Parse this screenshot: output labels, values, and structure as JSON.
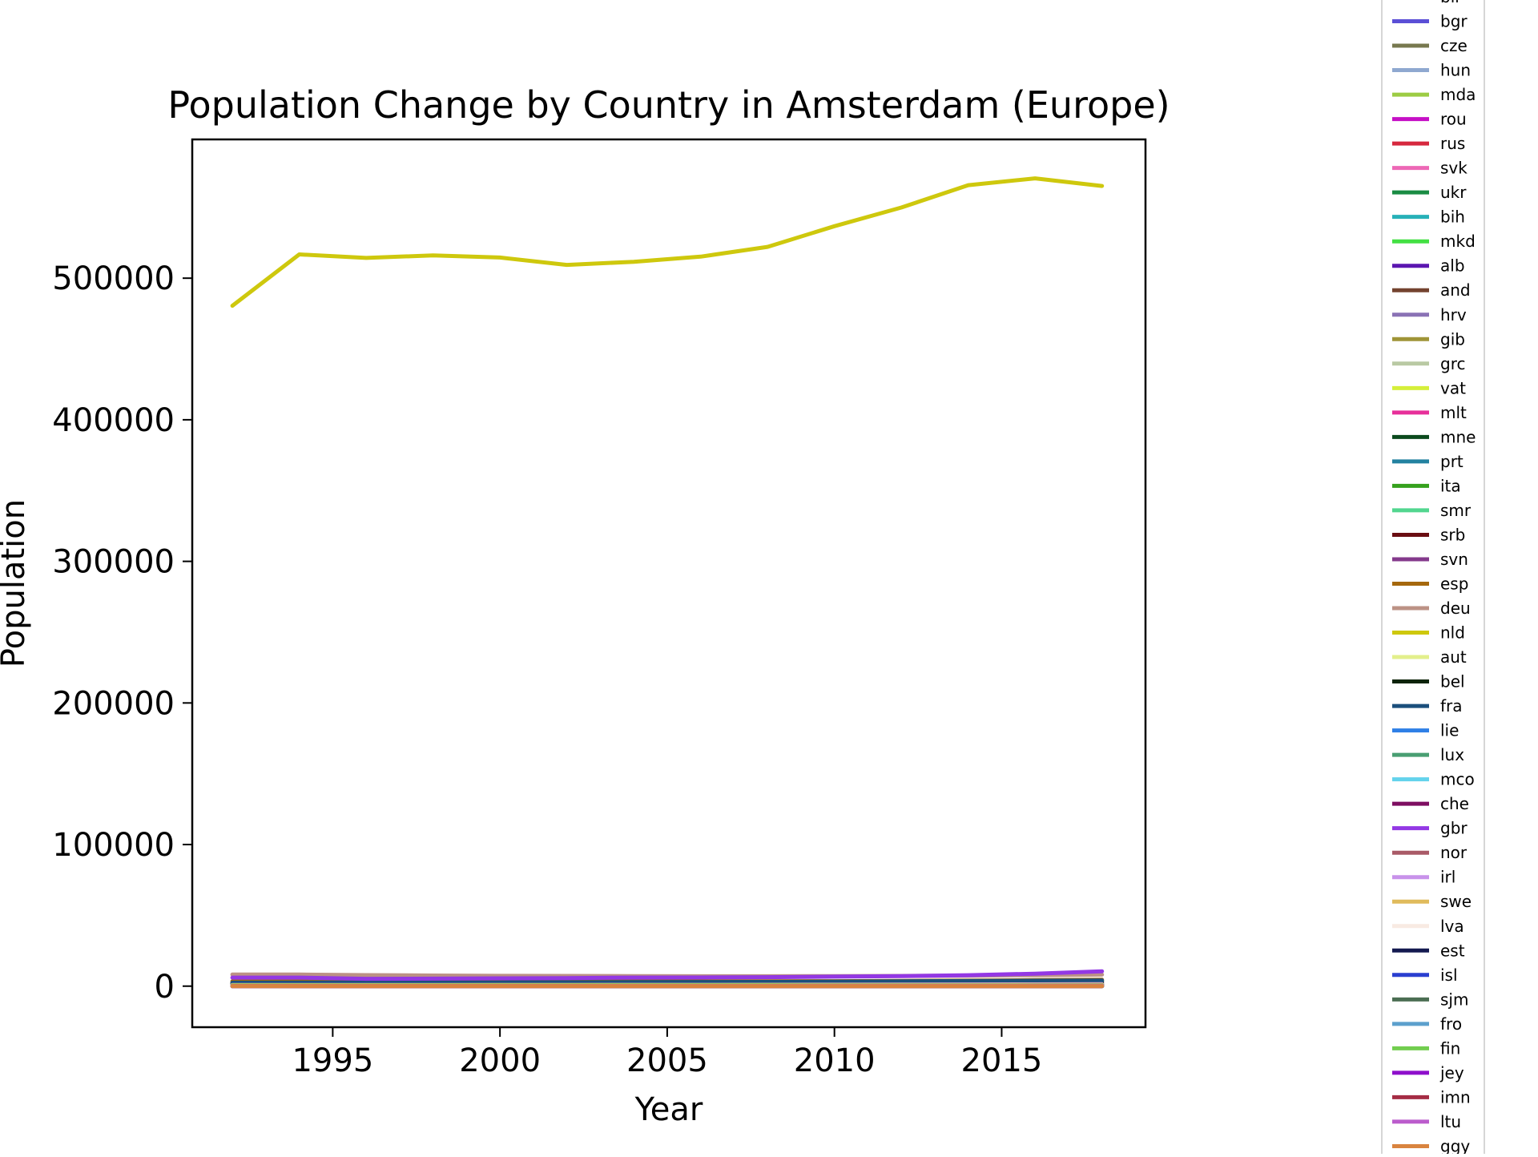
{
  "chart_data": {
    "type": "line",
    "title": "Population Change by Country in Amsterdam (Europe)",
    "xlabel": "Year",
    "ylabel": "Population",
    "xlim": [
      1990.8,
      2019.3
    ],
    "ylim": [
      -29000,
      598000
    ],
    "xticks": [
      1995,
      2000,
      2005,
      2010,
      2015
    ],
    "yticks": [
      0,
      100000,
      200000,
      300000,
      400000,
      500000
    ],
    "grid": false,
    "legend": "right",
    "x": [
      1992,
      1994,
      1996,
      1998,
      2000,
      2002,
      2004,
      2006,
      2008,
      2010,
      2012,
      2014,
      2016,
      2018
    ],
    "series": [
      {
        "name": "blr",
        "color": "#6b8e23",
        "values": [
          200,
          220,
          240,
          260,
          280,
          300,
          320,
          340,
          360,
          380,
          400,
          420,
          440,
          460
        ]
      },
      {
        "name": "bgr",
        "color": "#5b4fd6",
        "values": [
          300,
          330,
          360,
          400,
          450,
          500,
          560,
          620,
          700,
          800,
          900,
          1000,
          1100,
          1200
        ]
      },
      {
        "name": "cze",
        "color": "#77784f",
        "values": [
          500,
          520,
          540,
          560,
          580,
          600,
          620,
          640,
          660,
          680,
          700,
          720,
          740,
          760
        ]
      },
      {
        "name": "hun",
        "color": "#8fa8d0",
        "values": [
          400,
          420,
          440,
          460,
          480,
          500,
          520,
          540,
          560,
          580,
          600,
          620,
          640,
          660
        ]
      },
      {
        "name": "mda",
        "color": "#9ccc44",
        "values": [
          100,
          110,
          120,
          130,
          140,
          150,
          160,
          170,
          180,
          190,
          200,
          210,
          220,
          230
        ]
      },
      {
        "name": "rou",
        "color": "#c50fc5",
        "values": [
          600,
          630,
          660,
          700,
          740,
          780,
          820,
          860,
          900,
          950,
          1000,
          1050,
          1100,
          1150
        ]
      },
      {
        "name": "rus",
        "color": "#d6283e",
        "values": [
          1500,
          1600,
          1700,
          1800,
          1900,
          2000,
          2100,
          2200,
          2300,
          2400,
          2500,
          2600,
          2700,
          2800
        ]
      },
      {
        "name": "svk",
        "color": "#ed68b6",
        "values": [
          200,
          210,
          220,
          230,
          240,
          250,
          260,
          270,
          280,
          290,
          300,
          310,
          320,
          330
        ]
      },
      {
        "name": "ukr",
        "color": "#198c43",
        "values": [
          500,
          550,
          600,
          650,
          700,
          750,
          800,
          850,
          900,
          950,
          1000,
          1050,
          1100,
          1150
        ]
      },
      {
        "name": "bih",
        "color": "#27b1b8",
        "values": [
          1200,
          1300,
          1350,
          1400,
          1400,
          1380,
          1360,
          1340,
          1320,
          1300,
          1280,
          1260,
          1240,
          1220
        ]
      },
      {
        "name": "mkd",
        "color": "#43e043",
        "values": [
          400,
          410,
          420,
          430,
          440,
          450,
          460,
          470,
          480,
          490,
          500,
          510,
          520,
          530
        ]
      },
      {
        "name": "alb",
        "color": "#5b16b0",
        "values": [
          100,
          120,
          140,
          160,
          180,
          200,
          220,
          240,
          260,
          280,
          300,
          320,
          340,
          360
        ]
      },
      {
        "name": "and",
        "color": "#74432f",
        "values": [
          5,
          5,
          5,
          5,
          5,
          5,
          5,
          5,
          5,
          5,
          5,
          5,
          5,
          5
        ]
      },
      {
        "name": "hrv",
        "color": "#8a72b5",
        "values": [
          600,
          620,
          640,
          660,
          680,
          700,
          720,
          740,
          760,
          780,
          800,
          820,
          840,
          860
        ]
      },
      {
        "name": "gib",
        "color": "#9f9437",
        "values": [
          10,
          10,
          10,
          10,
          10,
          10,
          10,
          10,
          10,
          10,
          10,
          10,
          10,
          10
        ]
      },
      {
        "name": "grc",
        "color": "#b9c9a3",
        "values": [
          900,
          920,
          940,
          960,
          980,
          1000,
          1020,
          1040,
          1060,
          1080,
          1100,
          1200,
          1300,
          1400
        ]
      },
      {
        "name": "vat",
        "color": "#d5ef3a",
        "values": [
          2,
          2,
          2,
          2,
          2,
          2,
          2,
          2,
          2,
          2,
          2,
          2,
          2,
          2
        ]
      },
      {
        "name": "mlt",
        "color": "#e7309a",
        "values": [
          50,
          50,
          50,
          50,
          50,
          50,
          50,
          50,
          50,
          50,
          50,
          50,
          50,
          50
        ]
      },
      {
        "name": "mne",
        "color": "#0b4a1d",
        "values": [
          20,
          20,
          20,
          20,
          20,
          20,
          20,
          20,
          20,
          20,
          20,
          20,
          20,
          20
        ]
      },
      {
        "name": "prt",
        "color": "#2382a0",
        "values": [
          2500,
          2550,
          2600,
          2650,
          2700,
          2750,
          2800,
          2850,
          2900,
          3000,
          3100,
          3200,
          3300,
          3400
        ]
      },
      {
        "name": "ita",
        "color": "#35a11d",
        "values": [
          2000,
          2050,
          2100,
          2150,
          2200,
          2300,
          2400,
          2500,
          2600,
          2800,
          3000,
          3300,
          3600,
          3900
        ]
      },
      {
        "name": "smr",
        "color": "#52d68f",
        "values": [
          2,
          2,
          2,
          2,
          2,
          2,
          2,
          2,
          2,
          2,
          2,
          2,
          2,
          2
        ]
      },
      {
        "name": "srb",
        "color": "#6a0d12",
        "values": [
          1800,
          1900,
          1950,
          2000,
          2000,
          1950,
          1900,
          1850,
          1800,
          1750,
          1700,
          1650,
          1600,
          1550
        ]
      },
      {
        "name": "svn",
        "color": "#843a8c",
        "values": [
          100,
          100,
          100,
          100,
          100,
          100,
          110,
          120,
          130,
          140,
          150,
          160,
          170,
          180
        ]
      },
      {
        "name": "esp",
        "color": "#a5680d",
        "values": [
          3500,
          3450,
          3400,
          3350,
          3300,
          3300,
          3300,
          3350,
          3400,
          3500,
          3700,
          3900,
          4200,
          4500
        ]
      },
      {
        "name": "deu",
        "color": "#bc9285",
        "values": [
          8200,
          8200,
          7800,
          7500,
          7300,
          7200,
          7100,
          7000,
          7000,
          7100,
          7200,
          7400,
          7700,
          8100
        ]
      },
      {
        "name": "nld",
        "color": "#cec80d",
        "values": [
          480500,
          516800,
          514300,
          516100,
          514600,
          509400,
          511600,
          515200,
          522100,
          536700,
          549900,
          565700,
          570500,
          565100
        ]
      },
      {
        "name": "aut",
        "color": "#e3ef8c",
        "values": [
          600,
          600,
          600,
          610,
          620,
          630,
          640,
          650,
          660,
          680,
          700,
          720,
          740,
          760
        ]
      },
      {
        "name": "bel",
        "color": "#0c2308",
        "values": [
          1600,
          1650,
          1700,
          1750,
          1800,
          1850,
          1900,
          1950,
          2000,
          2100,
          2200,
          2300,
          2400,
          2500
        ]
      },
      {
        "name": "fra",
        "color": "#1b4f7c",
        "values": [
          2400,
          2450,
          2500,
          2550,
          2600,
          2700,
          2800,
          2900,
          3000,
          3200,
          3400,
          3600,
          3800,
          4000
        ]
      },
      {
        "name": "lie",
        "color": "#2e7fe6",
        "values": [
          5,
          5,
          5,
          5,
          5,
          5,
          5,
          5,
          5,
          5,
          5,
          5,
          5,
          5
        ]
      },
      {
        "name": "lux",
        "color": "#499e72",
        "values": [
          50,
          50,
          50,
          50,
          50,
          50,
          50,
          50,
          50,
          50,
          50,
          50,
          50,
          50
        ]
      },
      {
        "name": "mco",
        "color": "#63d3ec",
        "values": [
          5,
          5,
          5,
          5,
          5,
          5,
          5,
          5,
          5,
          5,
          5,
          5,
          5,
          5
        ]
      },
      {
        "name": "che",
        "color": "#7e0e61",
        "values": [
          600,
          610,
          620,
          630,
          640,
          650,
          660,
          670,
          680,
          700,
          720,
          740,
          760,
          780
        ]
      },
      {
        "name": "gbr",
        "color": "#9338e4",
        "values": [
          6000,
          6000,
          5200,
          5300,
          5500,
          5700,
          6000,
          6100,
          6300,
          6700,
          7100,
          7700,
          8800,
          10500
        ]
      },
      {
        "name": "nor",
        "color": "#a95a67",
        "values": [
          400,
          410,
          420,
          430,
          440,
          450,
          460,
          470,
          480,
          490,
          500,
          510,
          520,
          530
        ]
      },
      {
        "name": "irl",
        "color": "#c892ea",
        "values": [
          800,
          820,
          840,
          860,
          880,
          900,
          920,
          960,
          1000,
          1050,
          1100,
          1200,
          1300,
          1400
        ]
      },
      {
        "name": "swe",
        "color": "#e0bb5c",
        "values": [
          700,
          710,
          720,
          730,
          740,
          750,
          760,
          780,
          800,
          830,
          860,
          900,
          950,
          1000
        ]
      },
      {
        "name": "lva",
        "color": "#f8eae2",
        "values": [
          50,
          60,
          70,
          80,
          90,
          100,
          120,
          140,
          160,
          180,
          200,
          220,
          240,
          260
        ]
      },
      {
        "name": "est",
        "color": "#141a50",
        "values": [
          30,
          35,
          40,
          45,
          50,
          55,
          60,
          70,
          80,
          90,
          100,
          110,
          120,
          130
        ]
      },
      {
        "name": "isl",
        "color": "#2a3fd0",
        "values": [
          100,
          105,
          110,
          115,
          120,
          125,
          130,
          135,
          140,
          145,
          150,
          155,
          160,
          165
        ]
      },
      {
        "name": "sjm",
        "color": "#4b6e53",
        "values": [
          1,
          1,
          1,
          1,
          1,
          1,
          1,
          1,
          1,
          1,
          1,
          1,
          1,
          1
        ]
      },
      {
        "name": "fro",
        "color": "#5ca0cd",
        "values": [
          5,
          5,
          5,
          5,
          5,
          5,
          5,
          5,
          5,
          5,
          5,
          5,
          5,
          5
        ]
      },
      {
        "name": "fin",
        "color": "#72cd4f",
        "values": [
          400,
          410,
          420,
          430,
          440,
          450,
          460,
          470,
          480,
          490,
          500,
          510,
          520,
          530
        ]
      },
      {
        "name": "jey",
        "color": "#8e0fcb",
        "values": [
          5,
          5,
          5,
          5,
          5,
          5,
          5,
          5,
          5,
          5,
          5,
          5,
          5,
          5
        ]
      },
      {
        "name": "imn",
        "color": "#a52c44",
        "values": [
          5,
          5,
          5,
          5,
          5,
          5,
          5,
          5,
          5,
          5,
          5,
          5,
          5,
          5
        ]
      },
      {
        "name": "ltu",
        "color": "#bb5ccc",
        "values": [
          50,
          60,
          70,
          80,
          90,
          100,
          120,
          140,
          160,
          180,
          200,
          220,
          240,
          260
        ]
      },
      {
        "name": "ggy",
        "color": "#d9843f",
        "values": [
          5,
          5,
          5,
          5,
          5,
          5,
          5,
          5,
          5,
          5,
          5,
          5,
          5,
          5
        ]
      }
    ]
  }
}
